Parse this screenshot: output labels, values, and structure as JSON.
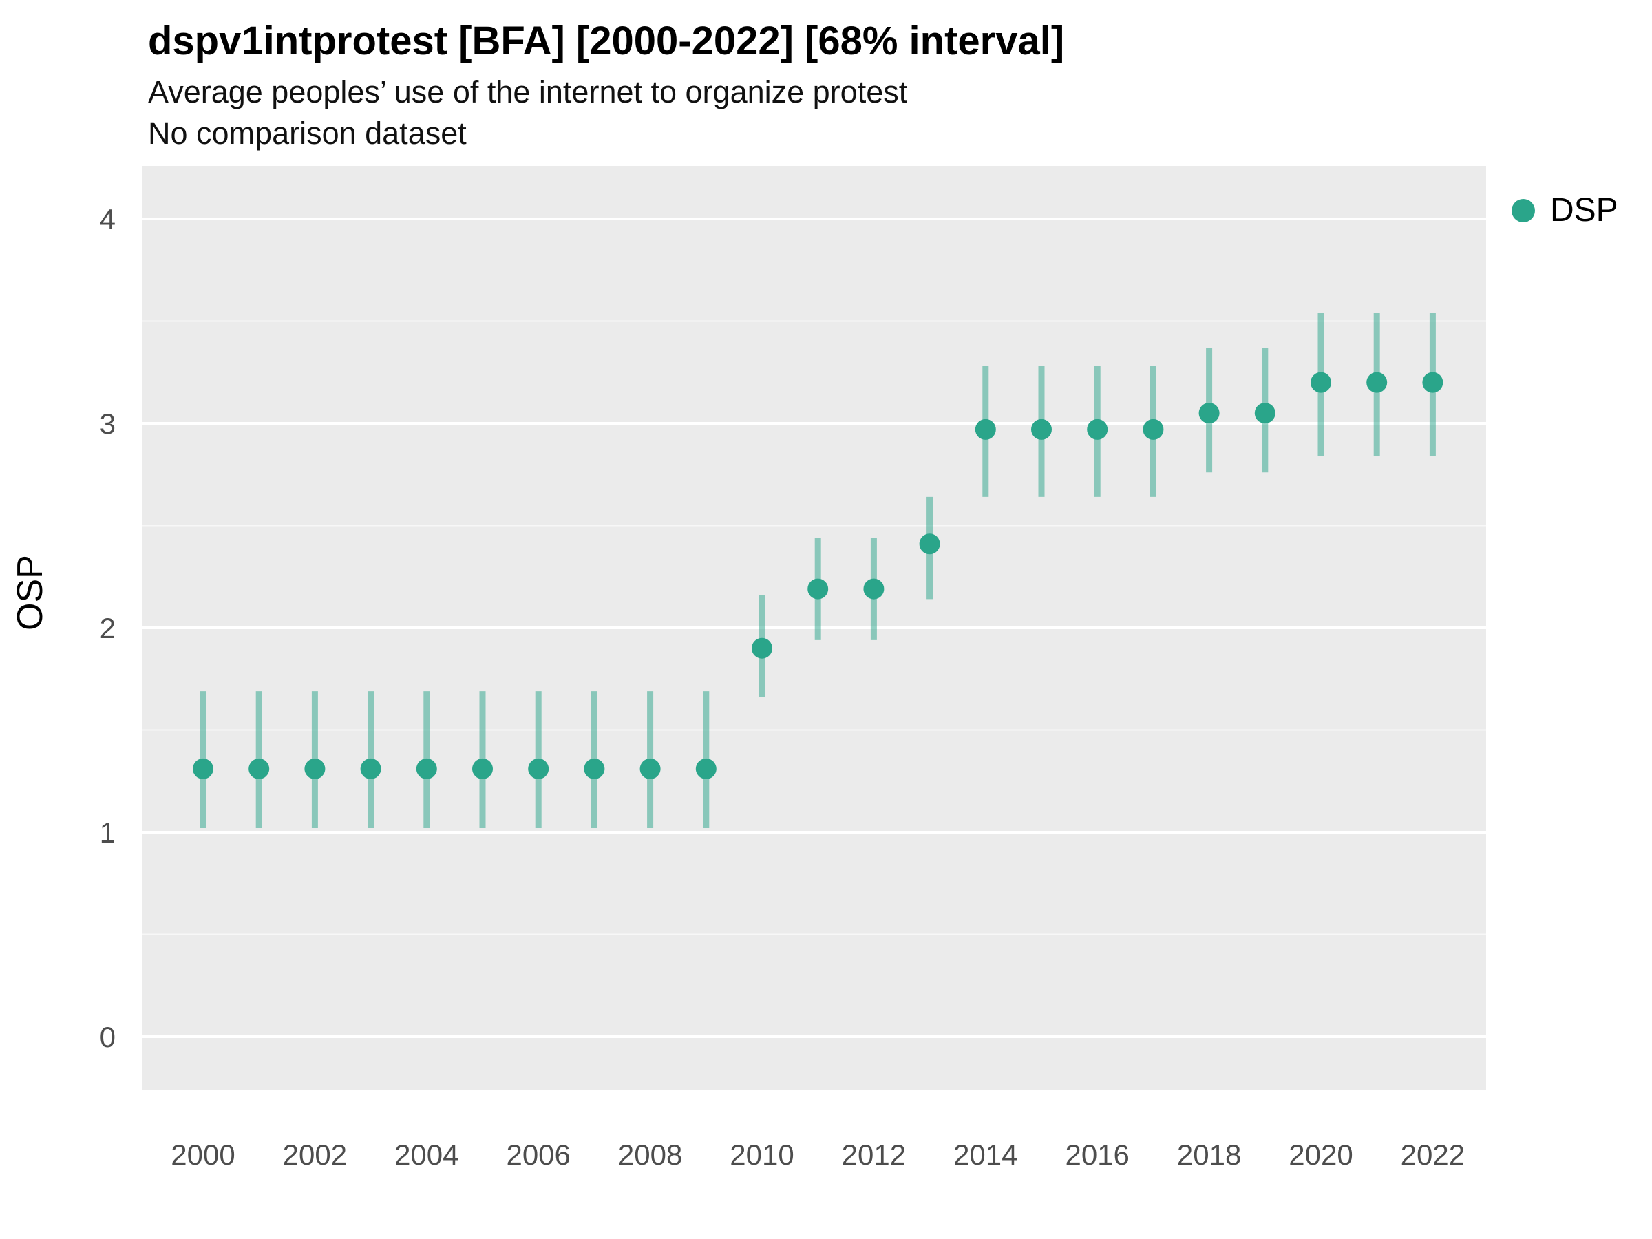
{
  "chart_data": {
    "type": "scatter",
    "variant": "pointrange",
    "title": "dspv1intprotest [BFA] [2000-2022] [68% interval]",
    "subtitle": "Average peoples’ use of the internet to organize protest",
    "note": "No comparison dataset",
    "interval": "68%",
    "xlabel": "",
    "ylabel": "OSP",
    "xlim": [
      1998.9,
      2023.1
    ],
    "ylim": [
      -0.26,
      4.26
    ],
    "x_ticks": [
      2000,
      2002,
      2004,
      2006,
      2008,
      2010,
      2012,
      2014,
      2016,
      2018,
      2020,
      2022
    ],
    "y_ticks": [
      0,
      1,
      2,
      3,
      4
    ],
    "y_minor_ticks": [
      0.5,
      1.5,
      2.5,
      3.5
    ],
    "grid": "horizontal-only",
    "legend_position": "right",
    "panel_background": "#EBEBEB",
    "gridline_color": "#FFFFFF",
    "tick_label_color": "#4d4d4d",
    "series": [
      {
        "name": "DSP",
        "color": "#2aa58a",
        "interval_color": "#2aa58a",
        "interval_opacity": 0.5,
        "points": [
          {
            "x": 2000,
            "y": 1.31,
            "lo": 1.02,
            "hi": 1.69
          },
          {
            "x": 2001,
            "y": 1.31,
            "lo": 1.02,
            "hi": 1.69
          },
          {
            "x": 2002,
            "y": 1.31,
            "lo": 1.02,
            "hi": 1.69
          },
          {
            "x": 2003,
            "y": 1.31,
            "lo": 1.02,
            "hi": 1.69
          },
          {
            "x": 2004,
            "y": 1.31,
            "lo": 1.02,
            "hi": 1.69
          },
          {
            "x": 2005,
            "y": 1.31,
            "lo": 1.02,
            "hi": 1.69
          },
          {
            "x": 2006,
            "y": 1.31,
            "lo": 1.02,
            "hi": 1.69
          },
          {
            "x": 2007,
            "y": 1.31,
            "lo": 1.02,
            "hi": 1.69
          },
          {
            "x": 2008,
            "y": 1.31,
            "lo": 1.02,
            "hi": 1.69
          },
          {
            "x": 2009,
            "y": 1.31,
            "lo": 1.02,
            "hi": 1.69
          },
          {
            "x": 2010,
            "y": 1.9,
            "lo": 1.66,
            "hi": 2.16
          },
          {
            "x": 2011,
            "y": 2.19,
            "lo": 1.94,
            "hi": 2.44
          },
          {
            "x": 2012,
            "y": 2.19,
            "lo": 1.94,
            "hi": 2.44
          },
          {
            "x": 2013,
            "y": 2.41,
            "lo": 2.14,
            "hi": 2.64
          },
          {
            "x": 2014,
            "y": 2.97,
            "lo": 2.64,
            "hi": 3.28
          },
          {
            "x": 2015,
            "y": 2.97,
            "lo": 2.64,
            "hi": 3.28
          },
          {
            "x": 2016,
            "y": 2.97,
            "lo": 2.64,
            "hi": 3.28
          },
          {
            "x": 2017,
            "y": 2.97,
            "lo": 2.64,
            "hi": 3.28
          },
          {
            "x": 2018,
            "y": 3.05,
            "lo": 2.76,
            "hi": 3.37
          },
          {
            "x": 2019,
            "y": 3.05,
            "lo": 2.76,
            "hi": 3.37
          },
          {
            "x": 2020,
            "y": 3.2,
            "lo": 2.84,
            "hi": 3.54
          },
          {
            "x": 2021,
            "y": 3.2,
            "lo": 2.84,
            "hi": 3.54
          },
          {
            "x": 2022,
            "y": 3.2,
            "lo": 2.84,
            "hi": 3.54
          }
        ]
      }
    ]
  }
}
